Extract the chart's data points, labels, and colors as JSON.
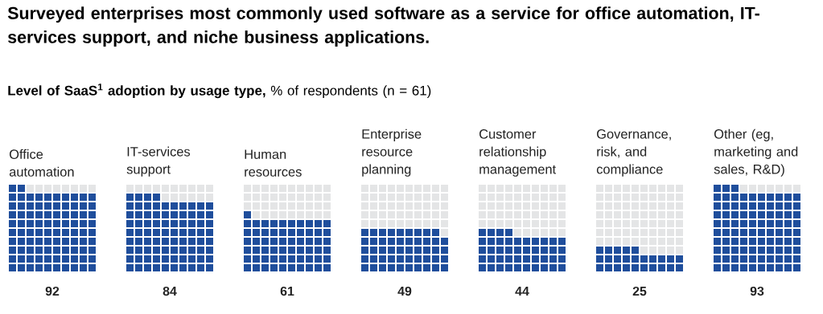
{
  "chart_data": {
    "type": "other",
    "title": "Surveyed enterprises most commonly used software as a service for office automation, IT-services support, and niche business applications.",
    "subtitle": "**Level of SaaS$^{1}$ adoption by usage type,** % of respondents (n = 61)",
    "categories": [
      "Office automation",
      "IT-services support",
      "Human resources",
      "Enterprise resource planning",
      "Customer relationship management",
      "Governance, risk, and compliance",
      "Other (eg, marketing and sales, R&D)"
    ],
    "values": [
      92,
      84,
      61,
      49,
      44,
      25,
      93
    ],
    "color": "#1f4e9c",
    "data_labels": true
  }
}
